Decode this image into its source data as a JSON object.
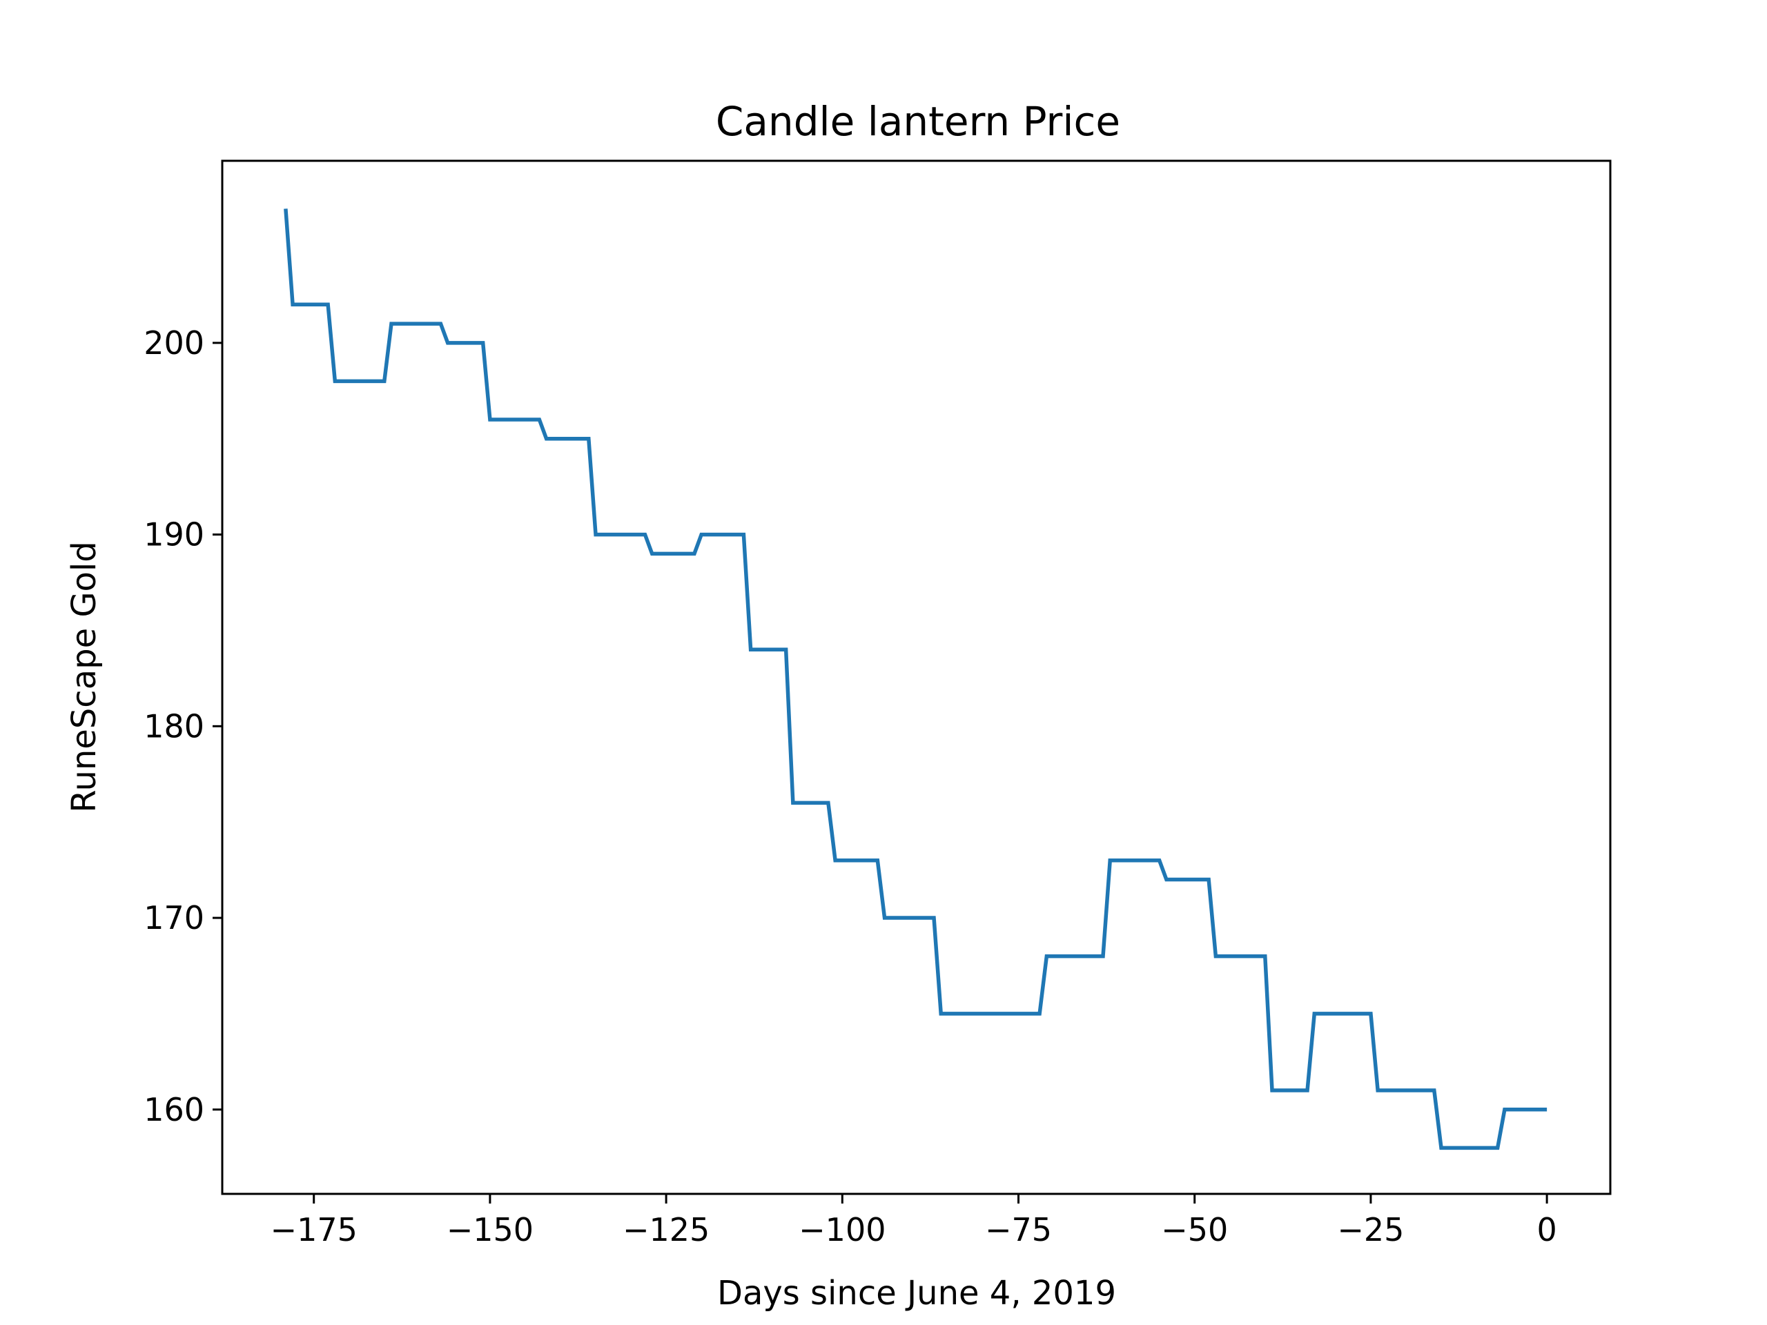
{
  "chart_data": {
    "type": "line",
    "title": "Candle lantern Price",
    "xlabel": "Days since June 4, 2019",
    "ylabel": "RuneScape Gold",
    "xlim": [
      -188,
      9
    ],
    "ylim": [
      155.6,
      209.5
    ],
    "xticks": [
      {
        "value": -175,
        "label": "−175"
      },
      {
        "value": -150,
        "label": "−150"
      },
      {
        "value": -125,
        "label": "−125"
      },
      {
        "value": -100,
        "label": "−100"
      },
      {
        "value": -75,
        "label": "−75"
      },
      {
        "value": -50,
        "label": "−50"
      },
      {
        "value": -25,
        "label": "−25"
      },
      {
        "value": 0,
        "label": "0"
      }
    ],
    "yticks": [
      {
        "value": 160,
        "label": "160"
      },
      {
        "value": 170,
        "label": "170"
      },
      {
        "value": 180,
        "label": "180"
      },
      {
        "value": 190,
        "label": "190"
      },
      {
        "value": 200,
        "label": "200"
      }
    ],
    "grid": false,
    "series": [
      {
        "color": "#1f77b4",
        "points": [
          [
            -179,
            207
          ],
          [
            -178,
            202
          ],
          [
            -173,
            202
          ],
          [
            -172,
            198
          ],
          [
            -165,
            198
          ],
          [
            -164,
            201
          ],
          [
            -157,
            201
          ],
          [
            -156,
            200
          ],
          [
            -151,
            200
          ],
          [
            -150,
            196
          ],
          [
            -143,
            196
          ],
          [
            -142,
            195
          ],
          [
            -136,
            195
          ],
          [
            -135,
            190
          ],
          [
            -128,
            190
          ],
          [
            -127,
            189
          ],
          [
            -121,
            189
          ],
          [
            -120,
            190
          ],
          [
            -114,
            190
          ],
          [
            -113,
            184
          ],
          [
            -108,
            184
          ],
          [
            -107,
            176
          ],
          [
            -102,
            176
          ],
          [
            -101,
            173
          ],
          [
            -95,
            173
          ],
          [
            -94,
            170
          ],
          [
            -87,
            170
          ],
          [
            -86,
            165
          ],
          [
            -72,
            165
          ],
          [
            -71,
            168
          ],
          [
            -63,
            168
          ],
          [
            -62,
            173
          ],
          [
            -55,
            173
          ],
          [
            -54,
            172
          ],
          [
            -48,
            172
          ],
          [
            -47,
            168
          ],
          [
            -40,
            168
          ],
          [
            -39,
            161
          ],
          [
            -34,
            161
          ],
          [
            -33,
            165
          ],
          [
            -25,
            165
          ],
          [
            -24,
            161
          ],
          [
            -16,
            161
          ],
          [
            -15,
            158
          ],
          [
            -7,
            158
          ],
          [
            -6,
            160
          ],
          [
            0,
            160
          ]
        ]
      }
    ]
  }
}
